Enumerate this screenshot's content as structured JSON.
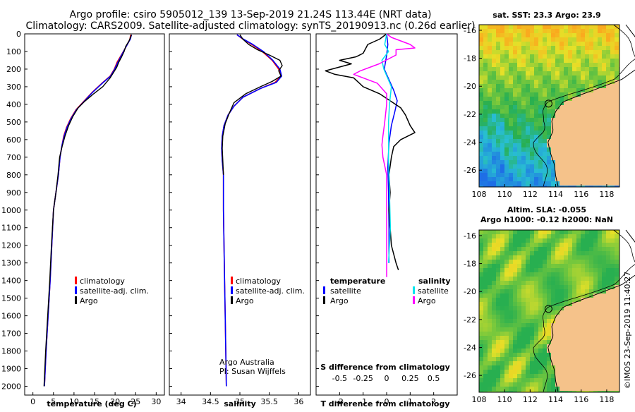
{
  "header": {
    "line1": "Argo profile: csiro 5905012_139 13-Sep-2019 21.24S 113.44E (NRT data)",
    "line2": "Climatology: CARS2009. Satellite-adjusted climatology: synTS_20190913.nc (0.26d earlier)"
  },
  "colors": {
    "climatology": "#ff0000",
    "satellite": "#0000ff",
    "argo": "#000000",
    "sat_salinity": "#00e5ee",
    "argo_salinity": "#ff00ff",
    "land": "#f5c28a"
  },
  "chart_data": [
    {
      "type": "line",
      "id": "temperature",
      "xlabel": "temperature (deg C)",
      "xlim": [
        -2,
        32
      ],
      "ylim": [
        0,
        2050
      ],
      "xticks": [
        "0",
        "5",
        "10",
        "15",
        "20",
        "25",
        "30"
      ],
      "yticks": [
        "0",
        "100",
        "200",
        "300",
        "400",
        "500",
        "600",
        "700",
        "800",
        "900",
        "1000",
        "1100",
        "1200",
        "1300",
        "1400",
        "1500",
        "1600",
        "1700",
        "1800",
        "1900",
        "2000"
      ],
      "legend": [
        "climatology",
        "satellite-adj. clim.",
        "Argo"
      ],
      "series": [
        {
          "name": "climatology",
          "points": [
            [
              23.8,
              5
            ],
            [
              23.6,
              30
            ],
            [
              23.2,
              50
            ],
            [
              22.5,
              80
            ],
            [
              21.5,
              120
            ],
            [
              20.5,
              160
            ],
            [
              19.8,
              200
            ],
            [
              18.8,
              240
            ],
            [
              16.8,
              280
            ],
            [
              14.5,
              330
            ],
            [
              12.5,
              380
            ],
            [
              10.5,
              430
            ],
            [
              9.2,
              480
            ],
            [
              8.2,
              530
            ],
            [
              7.5,
              580
            ],
            [
              7.1,
              630
            ],
            [
              6.6,
              700
            ],
            [
              6.2,
              800
            ],
            [
              5.6,
              900
            ],
            [
              5.0,
              1000
            ],
            [
              4.6,
              1200
            ],
            [
              4.2,
              1400
            ],
            [
              3.7,
              1600
            ],
            [
              3.2,
              1800
            ],
            [
              2.8,
              2000
            ]
          ]
        },
        {
          "name": "satellite-adj. clim.",
          "points": [
            [
              24.0,
              5
            ],
            [
              23.7,
              30
            ],
            [
              23.2,
              50
            ],
            [
              22.5,
              80
            ],
            [
              21.6,
              120
            ],
            [
              20.7,
              160
            ],
            [
              19.9,
              200
            ],
            [
              18.9,
              240
            ],
            [
              16.9,
              280
            ],
            [
              14.6,
              330
            ],
            [
              12.6,
              380
            ],
            [
              10.6,
              430
            ],
            [
              9.3,
              480
            ],
            [
              8.3,
              530
            ],
            [
              7.6,
              580
            ],
            [
              7.1,
              630
            ],
            [
              6.6,
              700
            ],
            [
              6.2,
              800
            ],
            [
              5.6,
              900
            ],
            [
              5.0,
              1000
            ],
            [
              4.6,
              1200
            ],
            [
              4.2,
              1400
            ],
            [
              3.7,
              1600
            ],
            [
              3.2,
              1800
            ],
            [
              2.8,
              2000
            ]
          ]
        },
        {
          "name": "Argo",
          "points": [
            [
              24.0,
              5
            ],
            [
              23.4,
              40
            ],
            [
              22.6,
              70
            ],
            [
              22.2,
              100
            ],
            [
              21.6,
              130
            ],
            [
              20.9,
              160
            ],
            [
              20.4,
              190
            ],
            [
              19.6,
              220
            ],
            [
              18.8,
              250
            ],
            [
              17.0,
              300
            ],
            [
              14.8,
              340
            ],
            [
              12.5,
              385
            ],
            [
              11.0,
              420
            ],
            [
              9.7,
              470
            ],
            [
              8.7,
              520
            ],
            [
              7.8,
              580
            ],
            [
              7.1,
              640
            ],
            [
              6.5,
              700
            ],
            [
              6.1,
              800
            ],
            [
              5.6,
              900
            ],
            [
              5.0,
              1000
            ],
            [
              4.5,
              1200
            ],
            [
              4.1,
              1400
            ],
            [
              3.6,
              1600
            ],
            [
              3.1,
              1800
            ],
            [
              2.7,
              2000
            ]
          ]
        }
      ]
    },
    {
      "type": "line",
      "id": "salinity",
      "xlabel": "salinity",
      "xlim": [
        33.8,
        36.2
      ],
      "ylim": [
        0,
        2050
      ],
      "xticks": [
        "34",
        "34.5",
        "35",
        "35.5",
        "36"
      ],
      "legend": [
        "climatology",
        "satellite-adj. clim.",
        "Argo"
      ],
      "annotation": [
        "Argo Australia",
        "PI: Susan Wijffels"
      ],
      "series": [
        {
          "name": "climatology",
          "points": [
            [
              34.95,
              5
            ],
            [
              35.05,
              30
            ],
            [
              35.2,
              60
            ],
            [
              35.38,
              100
            ],
            [
              35.55,
              150
            ],
            [
              35.66,
              200
            ],
            [
              35.7,
              240
            ],
            [
              35.6,
              275
            ],
            [
              35.35,
              310
            ],
            [
              35.05,
              360
            ],
            [
              34.9,
              410
            ],
            [
              34.8,
              460
            ],
            [
              34.73,
              520
            ],
            [
              34.7,
              580
            ],
            [
              34.69,
              650
            ],
            [
              34.7,
              720
            ],
            [
              34.72,
              800
            ],
            [
              34.72,
              900
            ],
            [
              34.72,
              1000
            ],
            [
              34.73,
              1200
            ],
            [
              34.74,
              1400
            ],
            [
              34.75,
              1600
            ],
            [
              34.76,
              1800
            ],
            [
              34.77,
              2000
            ]
          ]
        },
        {
          "name": "satellite-adj. clim.",
          "points": [
            [
              34.95,
              5
            ],
            [
              35.06,
              30
            ],
            [
              35.22,
              60
            ],
            [
              35.4,
              100
            ],
            [
              35.56,
              150
            ],
            [
              35.68,
              200
            ],
            [
              35.71,
              240
            ],
            [
              35.62,
              275
            ],
            [
              35.35,
              310
            ],
            [
              35.05,
              360
            ],
            [
              34.9,
              410
            ],
            [
              34.8,
              460
            ],
            [
              34.73,
              520
            ],
            [
              34.7,
              580
            ],
            [
              34.69,
              650
            ],
            [
              34.7,
              720
            ],
            [
              34.72,
              800
            ],
            [
              34.72,
              900
            ],
            [
              34.72,
              1000
            ],
            [
              34.73,
              1200
            ],
            [
              34.74,
              1400
            ],
            [
              34.75,
              1600
            ],
            [
              34.76,
              1800
            ],
            [
              34.77,
              2000
            ]
          ]
        },
        {
          "name": "Argo",
          "points": [
            [
              35.0,
              5
            ],
            [
              35.05,
              30
            ],
            [
              35.15,
              60
            ],
            [
              35.3,
              90
            ],
            [
              35.5,
              120
            ],
            [
              35.68,
              150
            ],
            [
              35.72,
              180
            ],
            [
              35.66,
              210
            ],
            [
              35.7,
              240
            ],
            [
              35.55,
              270
            ],
            [
              35.35,
              300
            ],
            [
              35.1,
              340
            ],
            [
              34.9,
              390
            ],
            [
              34.82,
              450
            ],
            [
              34.75,
              510
            ],
            [
              34.71,
              580
            ],
            [
              34.7,
              650
            ],
            [
              34.71,
              720
            ],
            [
              34.72,
              800
            ]
          ]
        }
      ]
    },
    {
      "type": "line",
      "id": "difference",
      "xlabel": "T difference from climatology",
      "secondary_xlabel": "S difference from climatology",
      "xlim": [
        -3,
        3
      ],
      "ylim": [
        0,
        2050
      ],
      "xticks": [
        "-2",
        "-1",
        "0",
        "1",
        "2"
      ],
      "sticks": [
        "-0.5",
        "-0.25",
        "0",
        "0.25",
        "0.5"
      ],
      "legend_left": [
        "temperature",
        "satellite",
        "Argo"
      ],
      "legend_right": [
        "salinity",
        "satellite",
        "Argo"
      ],
      "series": [
        {
          "name": "T satellite",
          "points": [
            [
              0.0,
              0
            ],
            [
              0.05,
              60
            ],
            [
              0.0,
              120
            ],
            [
              -0.1,
              200
            ],
            [
              0.1,
              260
            ],
            [
              0.3,
              320
            ],
            [
              0.45,
              380
            ],
            [
              0.35,
              440
            ],
            [
              0.2,
              520
            ],
            [
              0.1,
              620
            ],
            [
              0.05,
              760
            ],
            [
              0.08,
              900
            ],
            [
              0.1,
              1100
            ],
            [
              0.1,
              1300
            ]
          ]
        },
        {
          "name": "T Argo",
          "points": [
            [
              0.0,
              0
            ],
            [
              -0.3,
              30
            ],
            [
              -0.8,
              60
            ],
            [
              -1.0,
              110
            ],
            [
              -1.3,
              130
            ],
            [
              -2.0,
              150
            ],
            [
              -1.5,
              170
            ],
            [
              -2.6,
              210
            ],
            [
              -2.2,
              230
            ],
            [
              -1.4,
              250
            ],
            [
              -1.0,
              300
            ],
            [
              -0.3,
              340
            ],
            [
              0.6,
              420
            ],
            [
              0.8,
              460
            ],
            [
              1.0,
              520
            ],
            [
              1.2,
              560
            ],
            [
              0.6,
              600
            ],
            [
              0.3,
              640
            ],
            [
              0.2,
              700
            ],
            [
              0.1,
              800
            ],
            [
              0.15,
              900
            ],
            [
              0.1,
              1000
            ],
            [
              0.15,
              1100
            ],
            [
              0.2,
              1200
            ],
            [
              0.4,
              1300
            ],
            [
              0.5,
              1340
            ]
          ]
        },
        {
          "name": "S satellite",
          "points": [
            [
              0.0,
              0
            ],
            [
              -0.02,
              60
            ],
            [
              0.02,
              100
            ],
            [
              -0.05,
              150
            ],
            [
              -0.03,
              200
            ],
            [
              0.05,
              300
            ],
            [
              0.03,
              400
            ],
            [
              0.02,
              500
            ],
            [
              0.02,
              700
            ],
            [
              0.03,
              900
            ],
            [
              0.04,
              1100
            ],
            [
              0.02,
              1300
            ]
          ]
        },
        {
          "name": "S Argo",
          "points": [
            [
              0.0,
              0
            ],
            [
              0.05,
              20
            ],
            [
              0.25,
              60
            ],
            [
              0.3,
              80
            ],
            [
              0.1,
              90
            ],
            [
              0.1,
              120
            ],
            [
              -0.08,
              170
            ],
            [
              -0.28,
              210
            ],
            [
              -0.35,
              230
            ],
            [
              -0.25,
              250
            ],
            [
              -0.1,
              280
            ],
            [
              0.0,
              340
            ],
            [
              0.0,
              400
            ],
            [
              -0.02,
              500
            ],
            [
              -0.04,
              580
            ],
            [
              -0.05,
              630
            ],
            [
              -0.04,
              700
            ],
            [
              0.0,
              800
            ],
            [
              0.0,
              900
            ],
            [
              0.0,
              1000
            ],
            [
              0.0,
              1100
            ],
            [
              0.0,
              1200
            ],
            [
              0.0,
              1300
            ],
            [
              0.0,
              1380
            ]
          ]
        }
      ]
    },
    {
      "type": "heatmap",
      "id": "sst_map",
      "title": "sat. SST: 23.3 Argo: 23.9",
      "xticks": [
        "108",
        "110",
        "112",
        "114",
        "116",
        "118"
      ],
      "yticks": [
        "-16",
        "-18",
        "-20",
        "-22",
        "-24",
        "-26"
      ],
      "xlim": [
        108,
        119
      ],
      "ylim": [
        -27.2,
        -15.6
      ],
      "argo_position": [
        113.44,
        -21.24
      ]
    },
    {
      "type": "heatmap",
      "id": "sla_map",
      "title_line1": "Altim. SLA: -0.055",
      "title_line2": "Argo h1000: -0.12 h2000: NaN",
      "xticks": [
        "108",
        "110",
        "112",
        "114",
        "116",
        "118"
      ],
      "yticks": [
        "-16",
        "-18",
        "-20",
        "-22",
        "-24",
        "-26"
      ],
      "xlim": [
        108,
        119
      ],
      "ylim": [
        -27.2,
        -15.6
      ],
      "argo_position": [
        113.44,
        -21.24
      ]
    }
  ],
  "stamp": "©IMOS 23-Sep-2019 11:40:27"
}
